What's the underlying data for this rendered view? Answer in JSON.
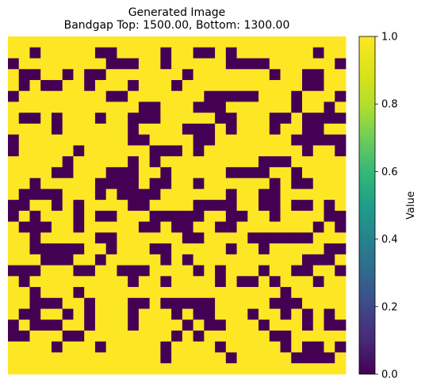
{
  "chart_data": {
    "type": "heatmap",
    "title_lines": [
      "Generated Image",
      "Bandgap Top: 1500.00, Bottom: 1300.00"
    ],
    "colorbar": {
      "label": "Value",
      "range": [
        0.0,
        1.0
      ],
      "ticks": [
        "0.0",
        "0.2",
        "0.4",
        "0.6",
        "0.8",
        "1.0"
      ],
      "colormap": "viridis"
    },
    "colors": {
      "low": "#440154",
      "high": "#fde725"
    },
    "grid": [
      "1111111111111111111111111111111",
      "1101111100111101100101111111011",
      "0111111110001101111100001111110",
      "1001101001111111011111110110011",
      "1010011011101110111111111110011",
      "0111111110011111110000011101110",
      "1111111111110011100011111101101",
      "1001011101100011111001110010000",
      "1111011111101111000101110110011",
      "0111111111100111100111111100000",
      "0111110111111000101111111110110",
      "1111101111101011111111100011111",
      "1111001110001101111100001101111",
      "1101111100001001101111110100111",
      "1000011101000011111101100111111",
      "0011010111100111100001100100101",
      "0101110100111000001100110111100",
      "1000110111110010011001111111010",
      "1101111100111111001111000000111",
      "1100000110111001111101101111100",
      "1110001101111101011111111110001",
      "0001110011000111101011101100110",
      "1011111111101101111010010111011",
      "1101110111111111111111111011111",
      "1100011011100100000111110001111",
      "1001101011101110100111011010101",
      "0100011011101111010011101110100",
      "0011100111111110101111110011111",
      "1111011101111101111011111010010",
      "1111111111111101111101111100001",
      "1111111111111111111111111111111"
    ]
  }
}
